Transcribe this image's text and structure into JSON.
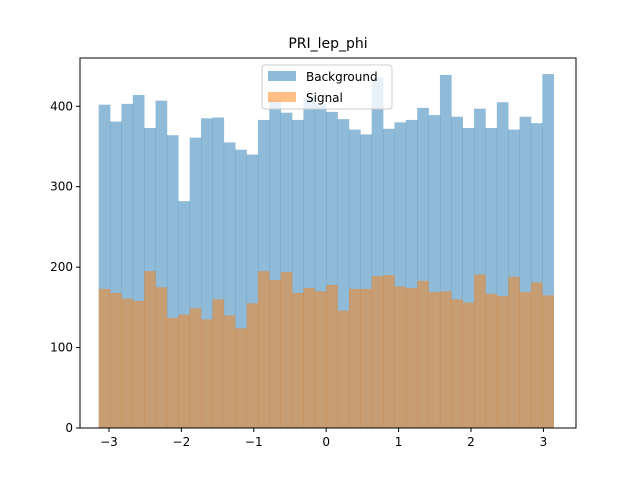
{
  "chart_data": {
    "type": "histogram",
    "title": "PRI_lep_phi",
    "xlabel": "",
    "ylabel": "",
    "xlim": [
      -3.4,
      3.45
    ],
    "ylim": [
      0,
      460
    ],
    "bin_range": [
      -3.142,
      3.142
    ],
    "bin_count": 40,
    "x_ticks": [
      -3,
      -2,
      -1,
      0,
      1,
      2,
      3
    ],
    "x_tick_labels": [
      "−3",
      "−2",
      "−1",
      "0",
      "1",
      "2",
      "3"
    ],
    "y_ticks": [
      0,
      100,
      200,
      300,
      400
    ],
    "y_tick_labels": [
      "0",
      "100",
      "200",
      "300",
      "400"
    ],
    "grid": false,
    "legend": {
      "position": "top-center"
    },
    "series": [
      {
        "name": "Background",
        "color": "#1f77b4",
        "alpha": 0.5,
        "values": [
          402,
          381,
          403,
          414,
          373,
          407,
          364,
          282,
          361,
          385,
          386,
          355,
          346,
          340,
          383,
          408,
          392,
          383,
          411,
          403,
          393,
          384,
          371,
          365,
          436,
          372,
          380,
          383,
          398,
          389,
          439,
          387,
          373,
          397,
          373,
          405,
          371,
          387,
          379,
          440
        ]
      },
      {
        "name": "Signal",
        "color": "#ff7f0e",
        "alpha": 0.5,
        "values": [
          173,
          168,
          161,
          158,
          195,
          175,
          137,
          141,
          149,
          135,
          160,
          140,
          124,
          155,
          195,
          184,
          194,
          168,
          174,
          170,
          178,
          146,
          173,
          173,
          189,
          190,
          176,
          174,
          183,
          169,
          170,
          160,
          156,
          191,
          167,
          164,
          188,
          169,
          181,
          165
        ]
      }
    ]
  }
}
